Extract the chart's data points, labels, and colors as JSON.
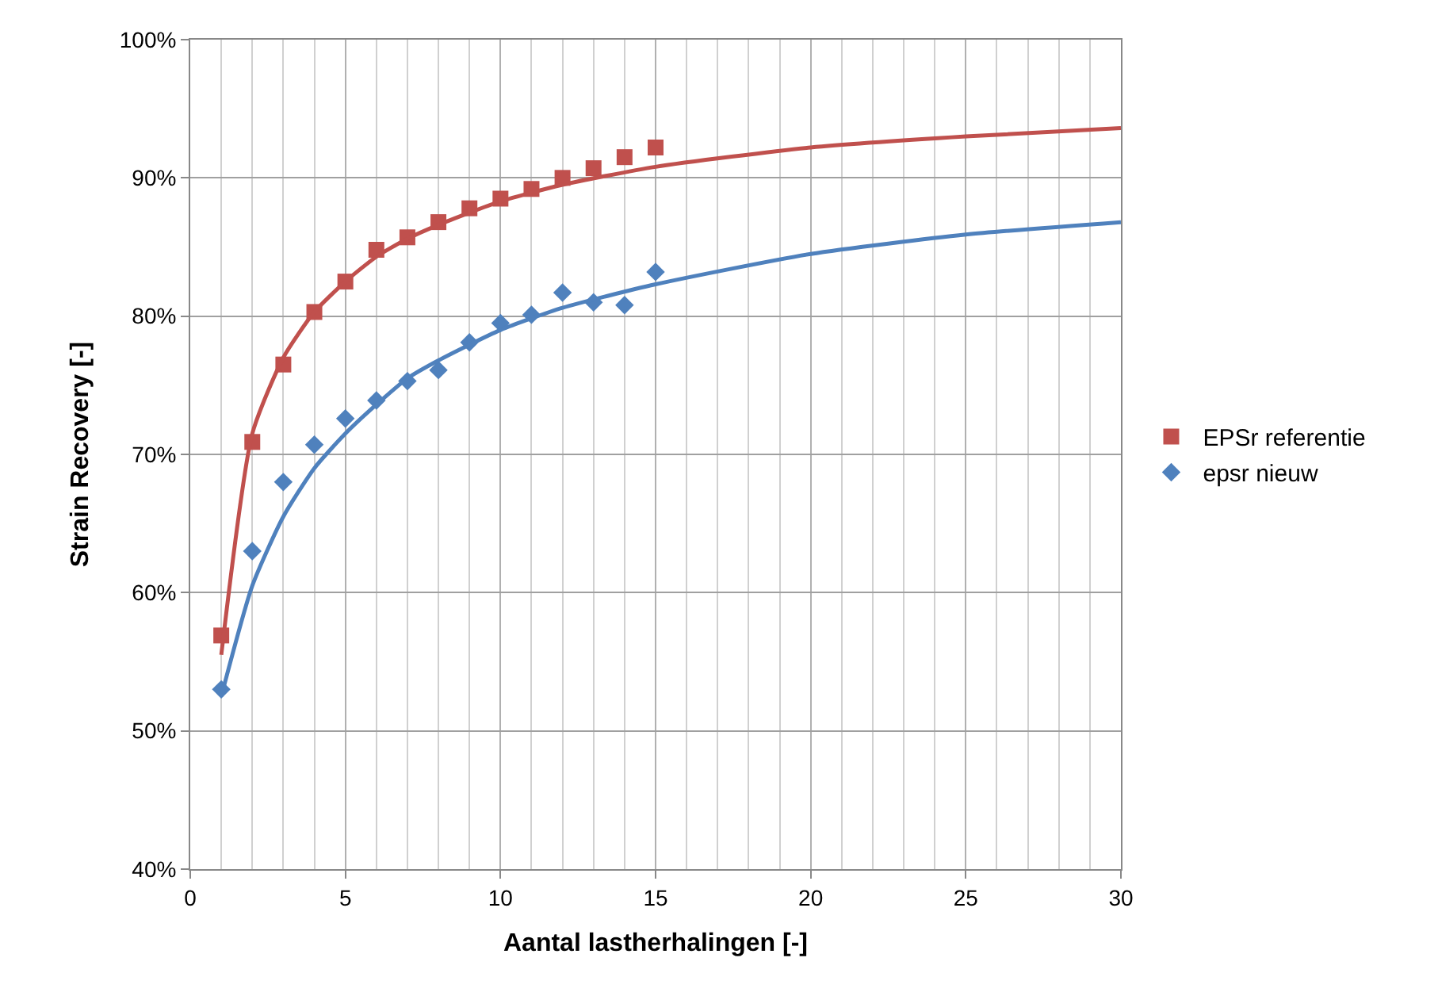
{
  "chart_data": {
    "type": "scatter",
    "xlabel": "Aantal lastherhalingen [-]",
    "ylabel": "Strain Recovery [-]",
    "xlim": [
      0,
      30
    ],
    "xticks": [
      0,
      5,
      10,
      15,
      20,
      25,
      30
    ],
    "ylim": [
      40,
      100
    ],
    "yticks": [
      {
        "value": 40,
        "label": "40%"
      },
      {
        "value": 50,
        "label": "50%"
      },
      {
        "value": 60,
        "label": "60%"
      },
      {
        "value": 70,
        "label": "70%"
      },
      {
        "value": 80,
        "label": "80%"
      },
      {
        "value": 90,
        "label": "90%"
      },
      {
        "value": 100,
        "label": "100%"
      }
    ],
    "grid": true,
    "legend": "right",
    "series": [
      {
        "name": "EPSr referentie",
        "color": "#c0504d",
        "marker": "square",
        "x": [
          1,
          2,
          3,
          4,
          5,
          6,
          7,
          8,
          9,
          10,
          11,
          12,
          13,
          14,
          15
        ],
        "values": [
          56.9,
          70.9,
          76.5,
          80.3,
          82.5,
          84.8,
          85.7,
          86.8,
          87.8,
          88.5,
          89.2,
          90.0,
          90.7,
          91.5,
          92.2
        ]
      },
      {
        "name": "epsr nieuw",
        "color": "#4f81bd",
        "marker": "diamond",
        "x": [
          1,
          2,
          3,
          4,
          5,
          6,
          7,
          8,
          9,
          10,
          11,
          12,
          13,
          14,
          15
        ],
        "values": [
          53.0,
          63.0,
          68.0,
          70.7,
          72.6,
          73.9,
          75.3,
          76.1,
          78.1,
          79.5,
          80.1,
          81.7,
          81.0,
          80.8,
          83.2
        ]
      },
      {
        "type": "line",
        "color": "#c0504d",
        "x": [
          1,
          2,
          3,
          4,
          5,
          6,
          7,
          8,
          10,
          12,
          15,
          20,
          25,
          30
        ],
        "values": [
          55.5,
          71.5,
          77.0,
          80.3,
          82.5,
          84.3,
          85.6,
          86.6,
          88.3,
          89.5,
          90.8,
          92.2,
          93.0,
          93.6
        ]
      },
      {
        "type": "line",
        "color": "#4f81bd",
        "x": [
          1,
          2,
          3,
          4,
          5,
          6,
          7,
          8,
          10,
          12,
          15,
          20,
          25,
          30
        ],
        "values": [
          52.5,
          60.5,
          65.5,
          69.0,
          71.5,
          73.6,
          75.5,
          76.8,
          79.0,
          80.6,
          82.3,
          84.5,
          85.9,
          86.8
        ]
      }
    ]
  }
}
